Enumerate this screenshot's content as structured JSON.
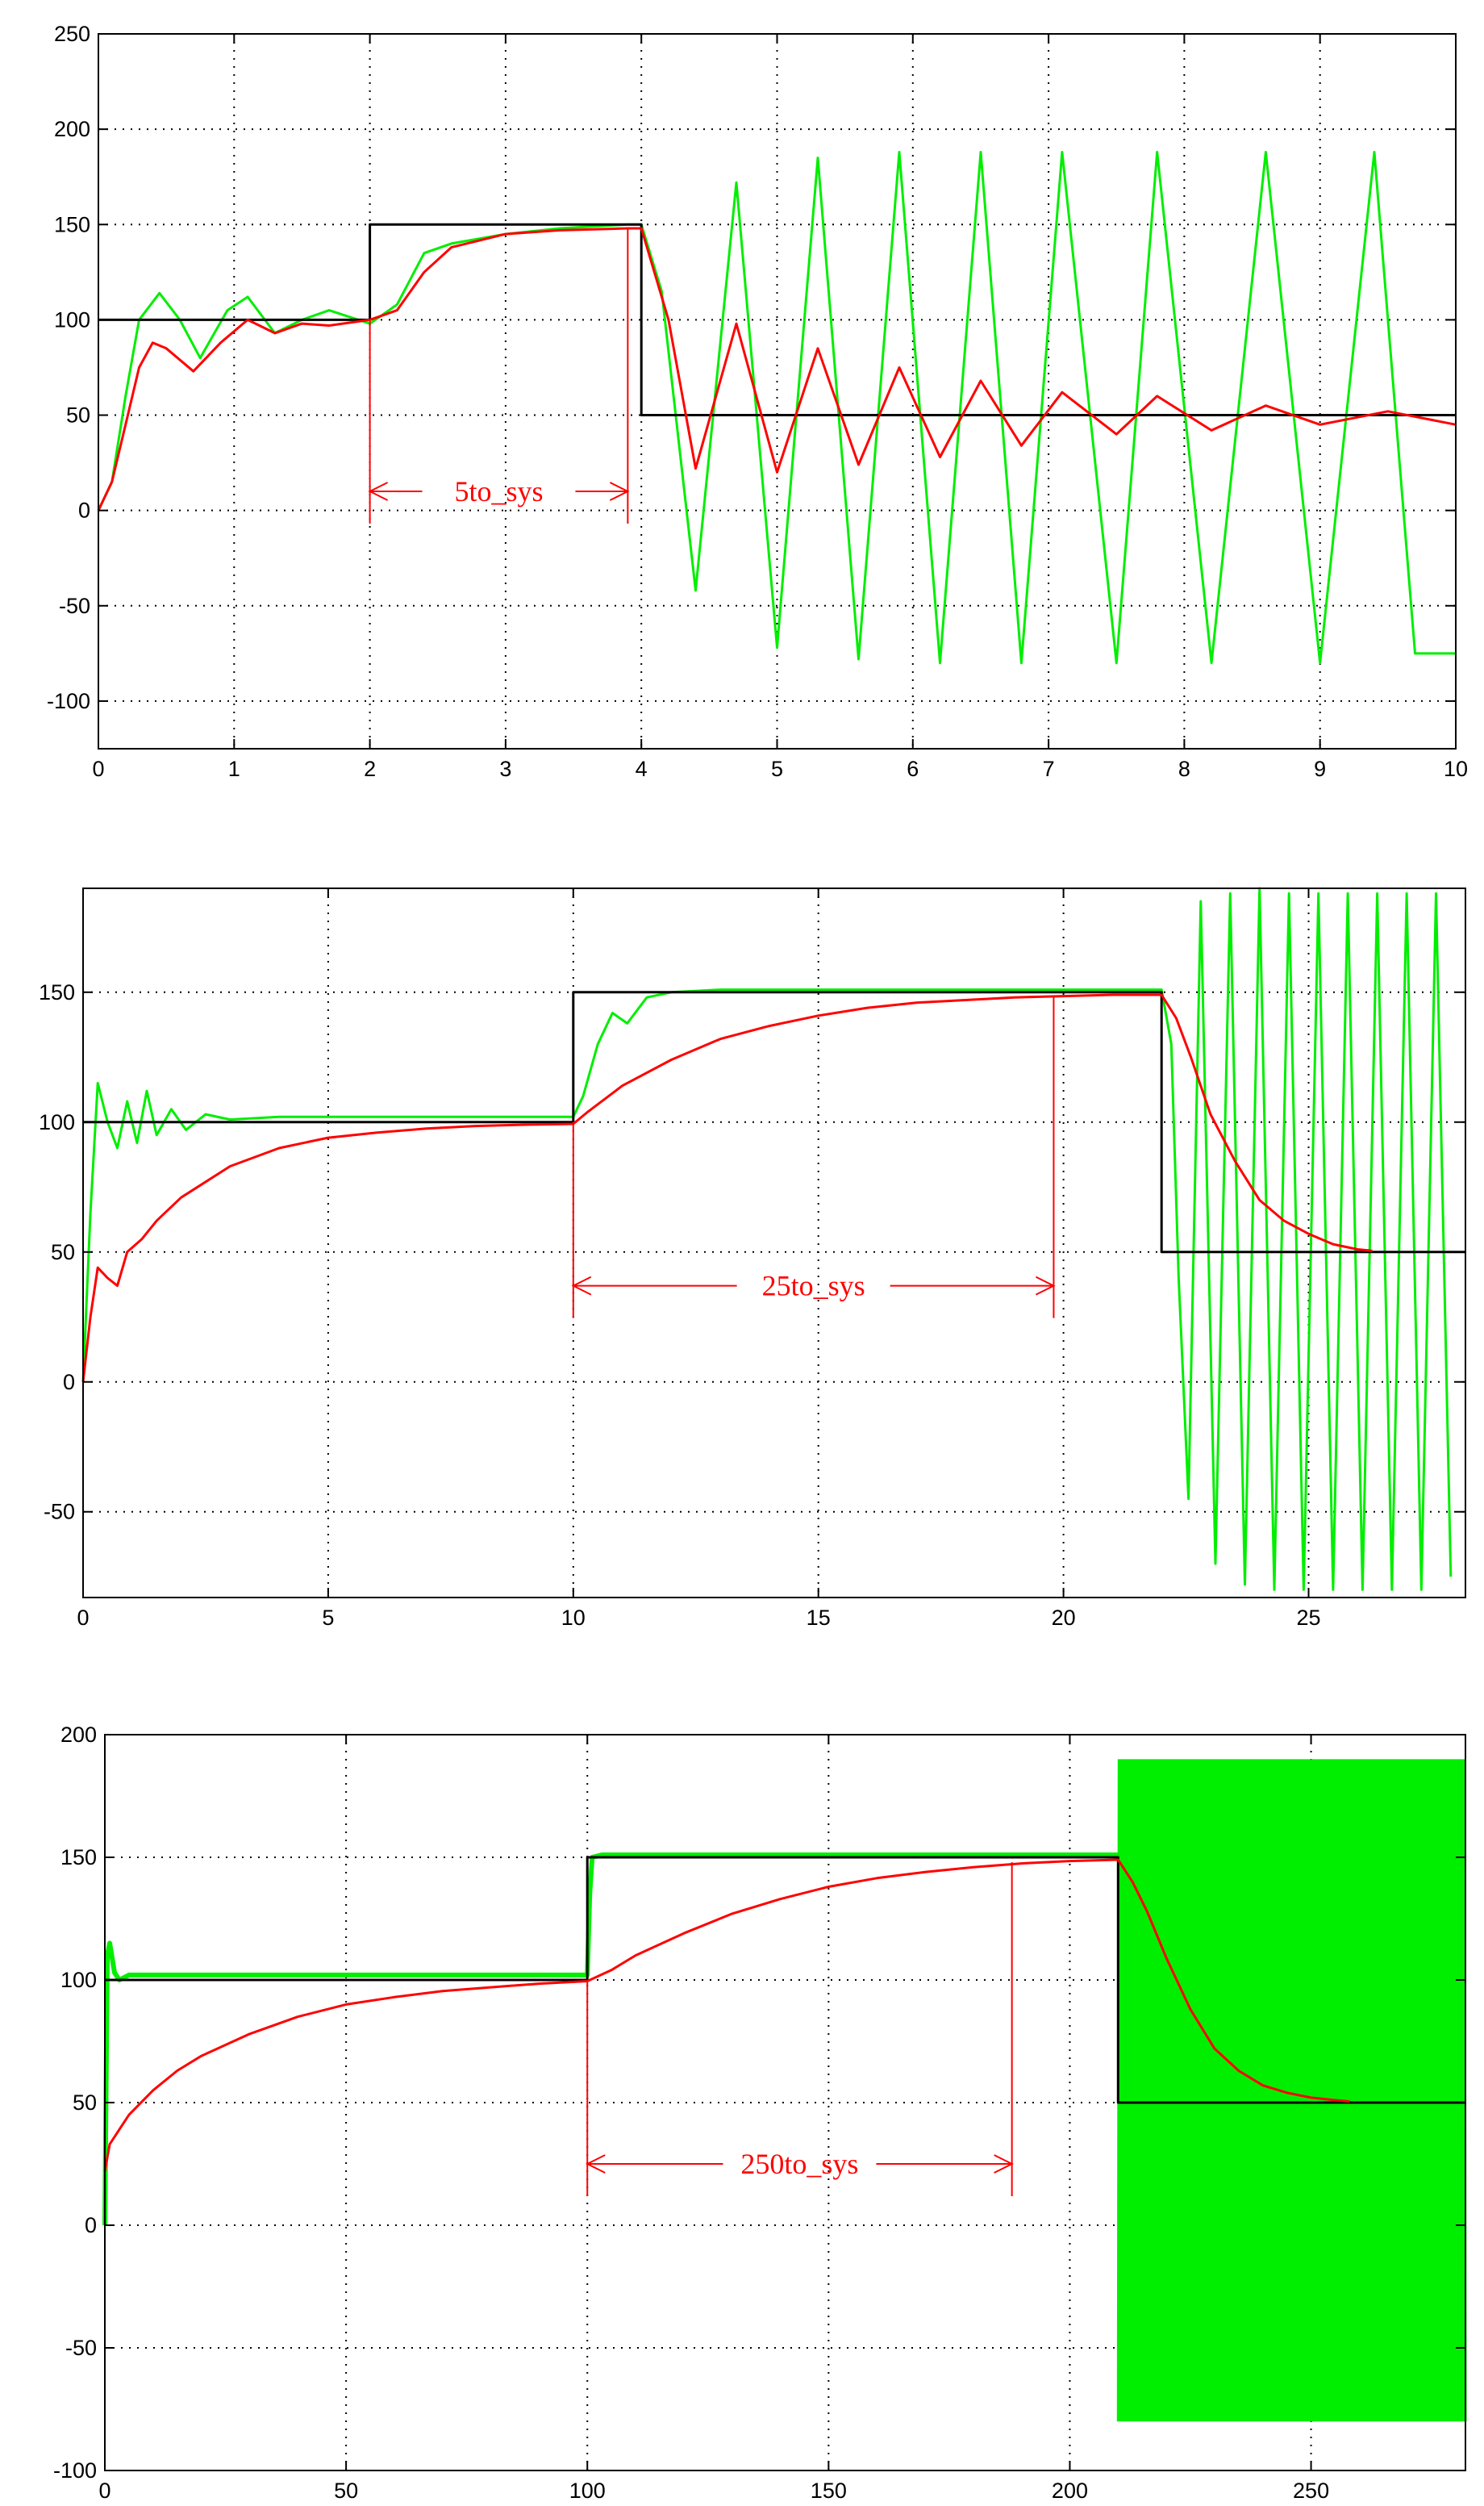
{
  "figure": {
    "colors": {
      "reference": "#000000",
      "response_red": "#ff0000",
      "response_green": "#00ee00",
      "grid": "#000000",
      "annotation": "#ff0000"
    }
  },
  "chart_data": [
    {
      "type": "line",
      "title": "",
      "xlabel": "",
      "ylabel": "",
      "xlim": [
        0,
        10
      ],
      "ylim": [
        -125,
        250
      ],
      "xticks": [
        0,
        1,
        2,
        3,
        4,
        5,
        6,
        7,
        8,
        9,
        10
      ],
      "yticks": [
        -100,
        -50,
        0,
        50,
        100,
        150,
        200,
        250
      ],
      "grid": true,
      "series": [
        {
          "color": "#000000",
          "x": [
            0,
            2,
            2,
            4,
            4,
            10
          ],
          "y": [
            100,
            100,
            150,
            150,
            50,
            50
          ]
        },
        {
          "color": "#ff0000",
          "x": [
            0,
            0.1,
            0.2,
            0.3,
            0.4,
            0.5,
            0.7,
            0.9,
            1.1,
            1.3,
            1.5,
            1.7,
            2.0,
            2.2,
            2.4,
            2.6,
            3.0,
            3.4,
            3.9,
            4.0,
            4.2,
            4.4,
            4.7,
            5.0,
            5.3,
            5.6,
            5.9,
            6.2,
            6.5,
            6.8,
            7.1,
            7.5,
            7.8,
            8.2,
            8.6,
            9.0,
            9.5,
            10.0
          ],
          "y": [
            0,
            15,
            45,
            75,
            88,
            85,
            73,
            88,
            100,
            93,
            98,
            97,
            100,
            105,
            125,
            138,
            145,
            147,
            148,
            148,
            100,
            22,
            98,
            20,
            85,
            24,
            75,
            28,
            68,
            34,
            62,
            40,
            60,
            42,
            55,
            45,
            52,
            45
          ]
        },
        {
          "color": "#00ee00",
          "x": [
            0,
            0.1,
            0.2,
            0.3,
            0.45,
            0.6,
            0.75,
            0.95,
            1.1,
            1.3,
            1.5,
            1.7,
            2.0,
            2.2,
            2.4,
            2.6,
            3.0,
            3.4,
            3.9,
            4.0,
            4.15,
            4.4,
            4.7,
            5.0,
            5.3,
            5.6,
            5.9,
            6.2,
            6.5,
            6.8,
            7.1,
            7.5,
            7.8,
            8.2,
            8.6,
            9.0,
            9.4,
            9.7,
            10.0
          ],
          "y": [
            0,
            15,
            60,
            100,
            114,
            100,
            80,
            105,
            112,
            93,
            100,
            105,
            98,
            108,
            135,
            140,
            145,
            148,
            150,
            150,
            115,
            -42,
            172,
            -72,
            185,
            -78,
            188,
            -80,
            188,
            -80,
            188,
            -80,
            188,
            -80,
            188,
            -80,
            188,
            -75,
            -75
          ]
        }
      ],
      "annotations": [
        {
          "label": "5to_sys",
          "x_from": 2,
          "x_to": 3.9,
          "y": 10
        }
      ]
    },
    {
      "type": "line",
      "title": "",
      "xlabel": "",
      "ylabel": "",
      "xlim": [
        0,
        28.2
      ],
      "ylim": [
        -83,
        190
      ],
      "xticks": [
        0,
        5,
        10,
        15,
        20,
        25
      ],
      "yticks": [
        -50,
        0,
        50,
        100,
        150
      ],
      "grid": true,
      "series": [
        {
          "color": "#000000",
          "x": [
            0,
            10,
            10,
            22,
            22,
            28.2
          ],
          "y": [
            100,
            100,
            150,
            150,
            50,
            50
          ]
        },
        {
          "color": "#ff0000",
          "x": [
            0,
            0.15,
            0.3,
            0.5,
            0.7,
            0.9,
            1.2,
            1.5,
            2,
            3,
            4,
            5,
            6,
            7,
            8,
            9,
            10,
            10.3,
            11,
            12,
            13,
            14,
            15,
            16,
            17,
            18,
            19,
            20,
            21,
            22,
            22.3,
            22.6,
            23,
            23.5,
            24,
            24.5,
            25,
            25.5,
            26,
            26.3
          ],
          "y": [
            0,
            25,
            44,
            40,
            37,
            50,
            55,
            62,
            71,
            83,
            90,
            94,
            96,
            97.5,
            98.5,
            99,
            99.3,
            104,
            114,
            124,
            132,
            137,
            141,
            144,
            146,
            147,
            148,
            148.5,
            149,
            149,
            140,
            125,
            103,
            85,
            70,
            62,
            57,
            53,
            51,
            50.5
          ]
        },
        {
          "color": "#00ee00",
          "x": [
            0,
            0.15,
            0.3,
            0.5,
            0.7,
            0.9,
            1.1,
            1.3,
            1.5,
            1.8,
            2.1,
            2.5,
            3,
            4,
            6,
            8,
            10,
            10.2,
            10.5,
            10.8,
            11.1,
            11.5,
            12,
            13,
            15,
            18,
            20,
            22,
            22.2,
            22.35,
            22.55,
            22.8,
            23.1,
            23.4,
            23.7,
            24,
            24.3,
            24.6,
            24.9,
            25.2,
            25.5,
            25.8,
            26.1,
            26.4,
            26.7,
            27,
            27.3,
            27.6,
            27.9
          ],
          "y": [
            0,
            65,
            115,
            100,
            90,
            108,
            92,
            112,
            95,
            105,
            97,
            103,
            101,
            102,
            102,
            102,
            102,
            110,
            130,
            142,
            138,
            148,
            150,
            151,
            151,
            151,
            151,
            151,
            130,
            40,
            -45,
            185,
            -70,
            188,
            -78,
            190,
            -80,
            188,
            -80,
            188,
            -80,
            188,
            -80,
            188,
            -80,
            188,
            -80,
            188,
            -75
          ]
        }
      ],
      "annotations": [
        {
          "label": "25to_sys",
          "x_from": 10,
          "x_to": 19.8,
          "y": 37
        }
      ]
    },
    {
      "type": "line",
      "title": "",
      "xlabel": "",
      "ylabel": "",
      "xlim": [
        0,
        282
      ],
      "ylim": [
        -100,
        200
      ],
      "xticks": [
        0,
        50,
        100,
        150,
        200,
        250
      ],
      "yticks": [
        -100,
        -50,
        0,
        50,
        100,
        150,
        200
      ],
      "grid": true,
      "series": [
        {
          "color": "#000000",
          "x": [
            0,
            100,
            100,
            210,
            210,
            282
          ],
          "y": [
            100,
            100,
            150,
            150,
            50,
            50
          ]
        },
        {
          "color": "#ff0000",
          "x": [
            0,
            1,
            3,
            5,
            10,
            15,
            20,
            30,
            40,
            50,
            60,
            70,
            80,
            90,
            100,
            105,
            110,
            120,
            130,
            140,
            150,
            160,
            170,
            180,
            190,
            200,
            210,
            213,
            216,
            220,
            225,
            230,
            235,
            240,
            245,
            250,
            255,
            258
          ],
          "y": [
            22,
            33,
            39,
            45,
            55,
            63,
            69,
            78,
            85,
            90,
            93,
            95.5,
            97,
            98.5,
            99.5,
            104,
            110,
            119,
            127,
            133,
            138,
            141.5,
            144,
            146,
            147.5,
            148.5,
            149,
            140,
            128,
            109,
            88,
            72,
            63,
            57,
            54,
            52,
            51,
            50.5
          ]
        },
        {
          "color": "#00ee00",
          "x": [
            0,
            0.5,
            1,
            2,
            3,
            5,
            10,
            50,
            100,
            100.5,
            101,
            103,
            110,
            150,
            200,
            210
          ],
          "y": [
            0,
            110,
            115,
            103,
            100,
            102,
            102,
            102,
            102,
            135,
            150,
            151,
            151,
            151,
            151,
            151
          ],
          "oscillation": {
            "x_start": 210,
            "x_end": 282,
            "min": -80,
            "max": 190
          }
        }
      ],
      "annotations": [
        {
          "label": "250to_sys",
          "x_from": 100,
          "x_to": 188,
          "y": 25
        }
      ]
    }
  ]
}
